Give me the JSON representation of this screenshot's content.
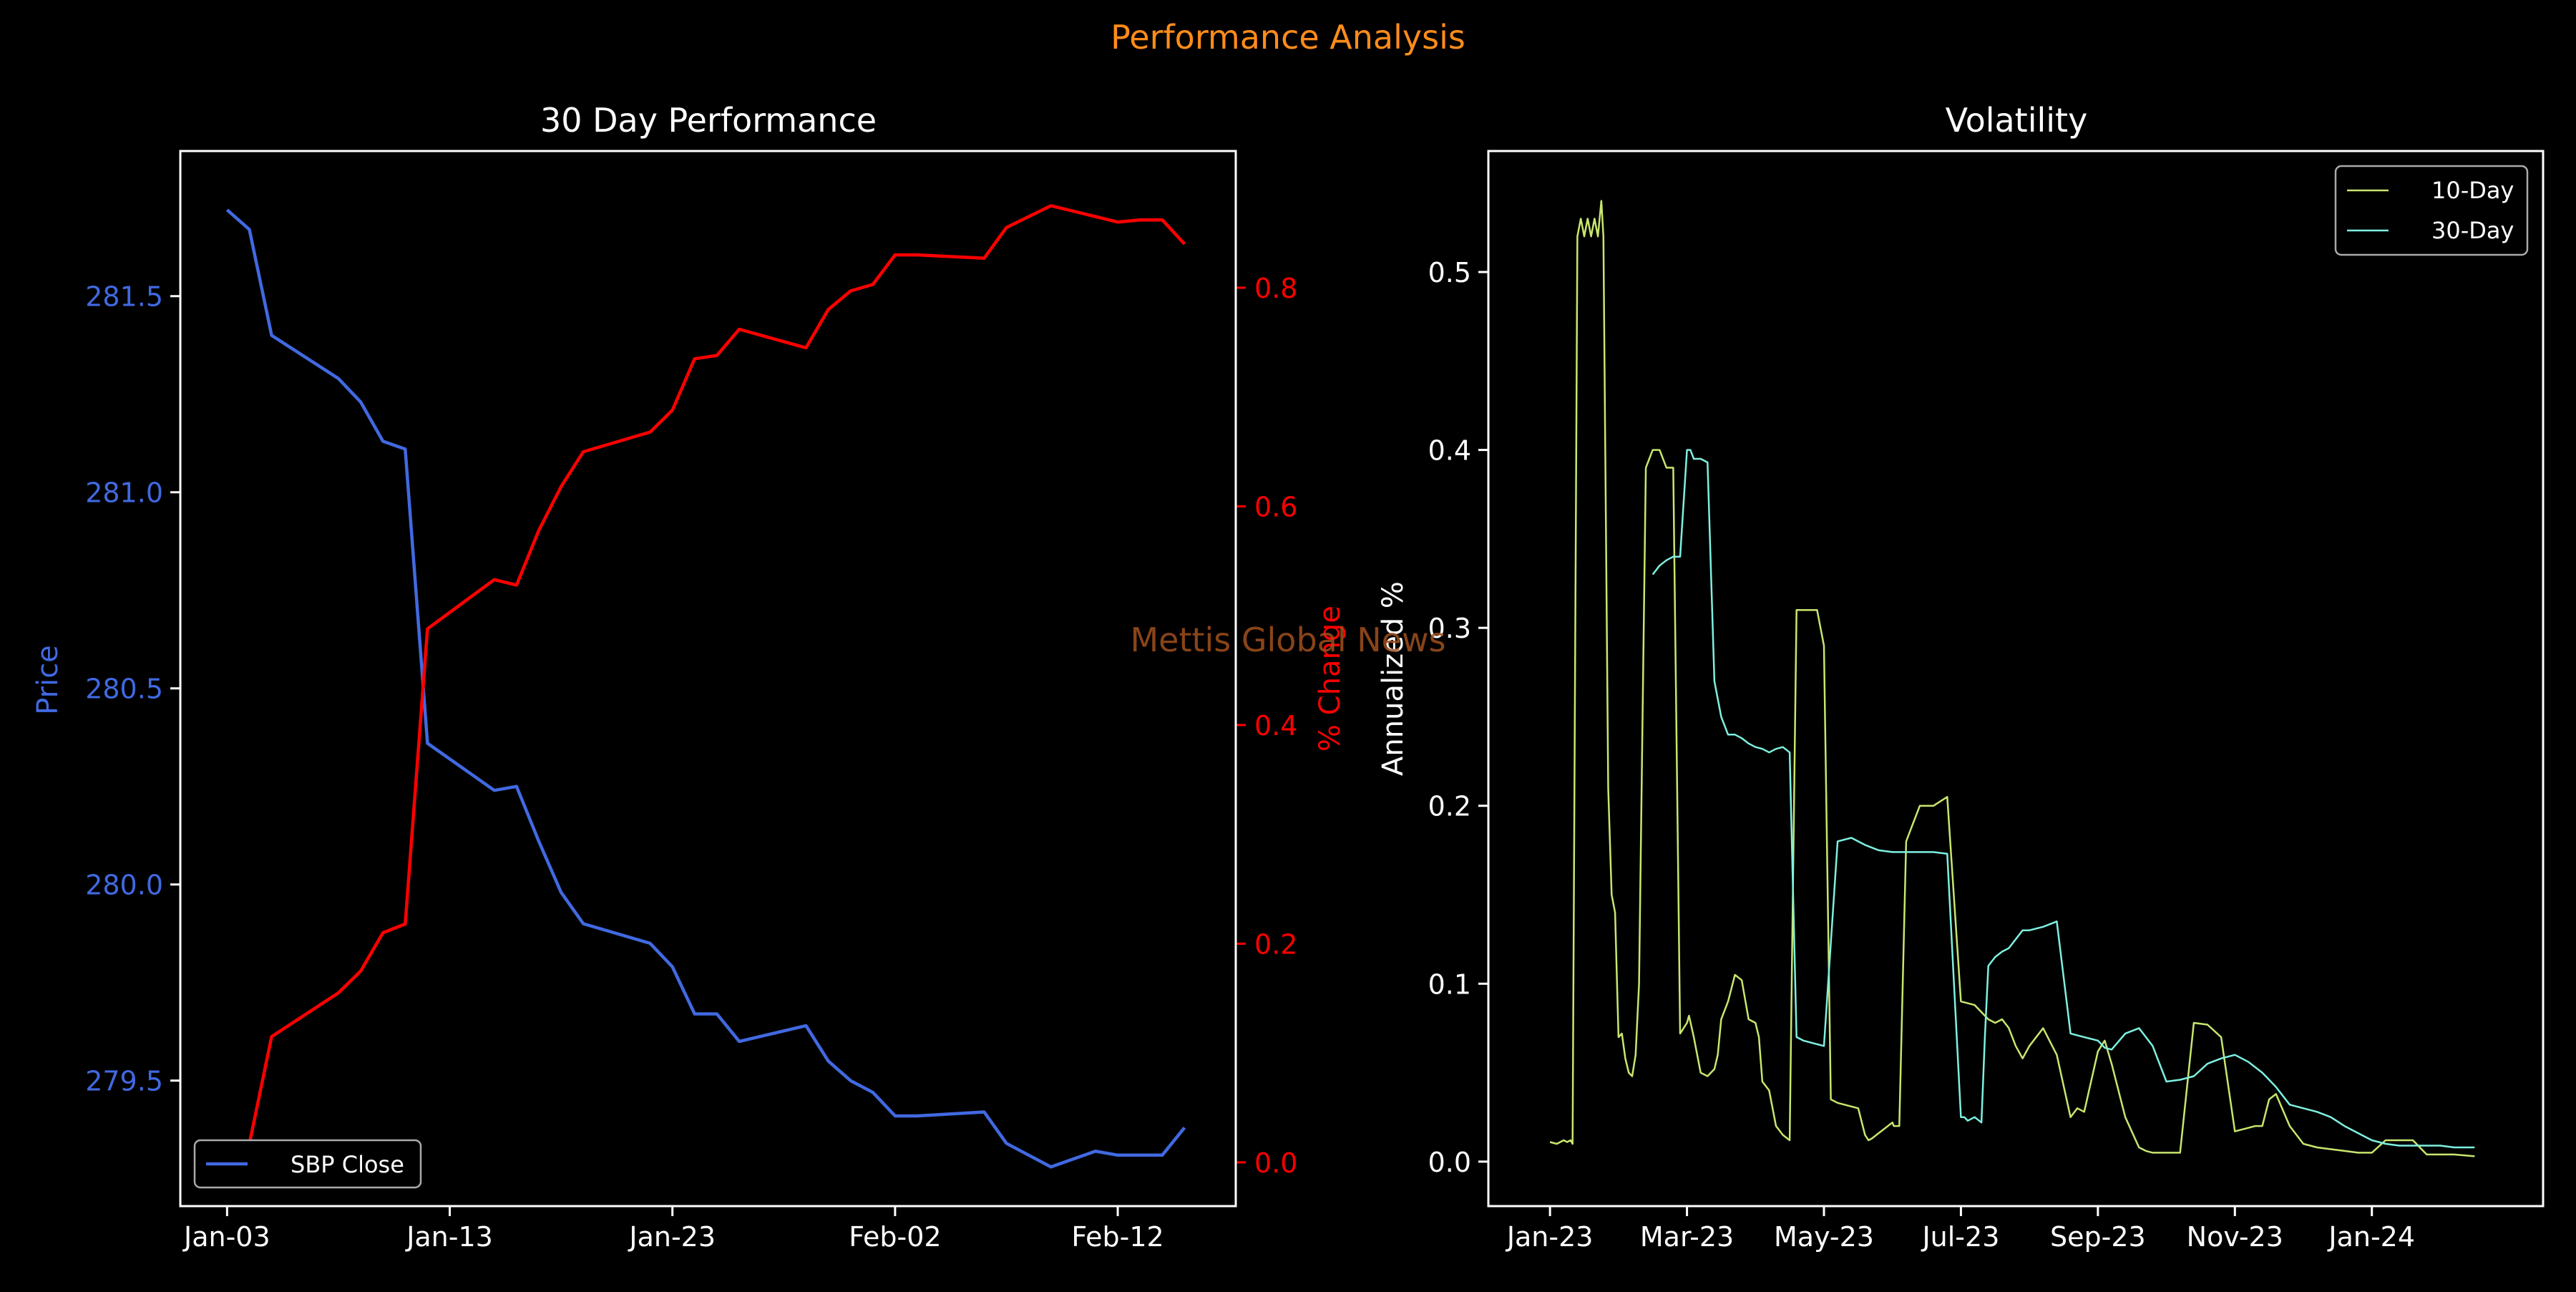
{
  "figure": {
    "suptitle": "Performance Analysis",
    "watermark": "Mettis Global News",
    "colors": {
      "background": "#000000",
      "suptitle": "#ff8c1a",
      "watermark": "#a0501c",
      "price": "#4169e1",
      "pct": "#ff0000",
      "vol10": "#c8e66e",
      "vol30": "#7ef0e0",
      "axes": "#ffffff"
    }
  },
  "chart_data": [
    {
      "type": "line",
      "title": "30 Day Performance",
      "xlabel": "",
      "ylabel_left": "Price",
      "ylabel_right": "% Change",
      "x_tick_labels": [
        "Jan-03",
        "Jan-13",
        "Jan-23",
        "Feb-02",
        "Feb-12"
      ],
      "x_tick_days": [
        0,
        10,
        20,
        30,
        40
      ],
      "y_left_ticks": [
        "279.5",
        "280.0",
        "280.5",
        "281.0",
        "281.5"
      ],
      "y_left_tick_values": [
        279.5,
        280.0,
        280.5,
        281.0,
        281.5
      ],
      "y_right_ticks": [
        "0.0",
        "0.2",
        "0.4",
        "0.6",
        "0.8"
      ],
      "y_right_tick_values": [
        0.0,
        0.2,
        0.4,
        0.6,
        0.8
      ],
      "xlim_days": [
        -2.1,
        45.3
      ],
      "ylim_left": [
        279.18,
        281.87
      ],
      "ylim_right": [
        -0.04,
        0.925
      ],
      "legend": {
        "position": "lower-left",
        "entries": [
          "SBP Close"
        ]
      },
      "grid": false,
      "series": [
        {
          "name": "SBP Close",
          "axis": "left",
          "x_days": [
            0,
            1,
            2,
            5,
            6,
            7,
            8,
            9,
            10,
            11,
            12,
            13,
            14,
            15,
            16,
            19,
            20,
            21,
            22,
            23,
            26,
            27,
            28,
            29,
            30,
            31,
            34,
            35,
            36,
            37,
            38,
            39,
            40,
            41,
            42,
            43
          ],
          "values": [
            281.72,
            281.67,
            281.4,
            281.29,
            281.23,
            281.13,
            281.11,
            280.36,
            280.32,
            280.28,
            280.24,
            280.25,
            280.11,
            279.98,
            279.9,
            279.85,
            279.79,
            279.67,
            279.67,
            279.6,
            279.64,
            279.55,
            279.5,
            279.47,
            279.41,
            279.41,
            279.42,
            279.34,
            279.31,
            279.28,
            279.3,
            279.32,
            279.31,
            279.31,
            279.31,
            279.38
          ]
        },
        {
          "name": "% Change",
          "axis": "right",
          "x_days": [
            0,
            1,
            2,
            5,
            6,
            7,
            8,
            9,
            10,
            11,
            12,
            13,
            14,
            15,
            16,
            19,
            20,
            21,
            22,
            23,
            26,
            27,
            28,
            29,
            30,
            31,
            34,
            35,
            36,
            37,
            38,
            39,
            40,
            41,
            42,
            43
          ],
          "values": [
            0.0,
            0.017,
            0.115,
            0.155,
            0.175,
            0.21,
            0.218,
            0.488,
            0.503,
            0.518,
            0.533,
            0.528,
            0.578,
            0.618,
            0.65,
            0.668,
            0.688,
            0.735,
            0.738,
            0.762,
            0.745,
            0.78,
            0.797,
            0.803,
            0.83,
            0.83,
            0.827,
            0.855,
            0.865,
            0.875,
            0.87,
            0.865,
            0.86,
            0.862,
            0.862,
            0.84
          ]
        }
      ]
    },
    {
      "type": "line",
      "title": "Volatility",
      "xlabel": "",
      "ylabel": "Annualized %",
      "x_tick_labels": [
        "Jan-23",
        "Mar-23",
        "May-23",
        "Jul-23",
        "Sep-23",
        "Nov-23",
        "Jan-24"
      ],
      "x_tick_months": [
        0,
        2,
        4,
        6,
        8,
        10,
        12
      ],
      "y_ticks": [
        "0.0",
        "0.1",
        "0.2",
        "0.3",
        "0.4",
        "0.5"
      ],
      "y_tick_values": [
        0.0,
        0.1,
        0.2,
        0.3,
        0.4,
        0.5
      ],
      "xlim_months": [
        -0.9,
        14.5
      ],
      "ylim": [
        -0.025,
        0.568
      ],
      "legend": {
        "position": "top-right",
        "entries": [
          "10-Day",
          "30-Day"
        ]
      },
      "grid": false,
      "series": [
        {
          "name": "10-Day",
          "x_months": [
            0.0,
            0.1,
            0.2,
            0.25,
            0.3,
            0.33,
            0.4,
            0.45,
            0.5,
            0.55,
            0.6,
            0.65,
            0.7,
            0.75,
            0.78,
            0.85,
            0.9,
            0.95,
            1.0,
            1.05,
            1.1,
            1.15,
            1.2,
            1.25,
            1.3,
            1.4,
            1.5,
            1.6,
            1.7,
            1.8,
            1.9,
            2.0,
            2.03,
            2.1,
            2.15,
            2.2,
            2.3,
            2.4,
            2.45,
            2.5,
            2.6,
            2.7,
            2.8,
            2.9,
            3.0,
            3.05,
            3.1,
            3.2,
            3.3,
            3.4,
            3.5,
            3.6,
            3.7,
            3.8,
            3.9,
            4.0,
            4.1,
            4.2,
            4.3,
            4.5,
            4.6,
            4.65,
            4.7,
            5.0,
            5.02,
            5.1,
            5.2,
            5.3,
            5.4,
            5.5,
            5.6,
            5.8,
            6.0,
            6.2,
            6.4,
            6.5,
            6.6,
            6.7,
            6.8,
            6.9,
            7.0,
            7.2,
            7.4,
            7.6,
            7.7,
            7.8,
            8.0,
            8.1,
            8.2,
            8.4,
            8.6,
            8.7,
            8.8,
            8.9,
            9.0,
            9.2,
            9.4,
            9.6,
            9.8,
            10.0,
            10.1,
            10.3,
            10.4,
            10.5,
            10.6,
            10.8,
            11.0,
            11.2,
            11.4,
            11.6,
            11.8,
            12.0,
            12.2,
            12.4,
            12.6,
            12.8,
            13.0,
            13.2,
            13.5
          ],
          "values": [
            0.011,
            0.01,
            0.012,
            0.011,
            0.012,
            0.01,
            0.52,
            0.53,
            0.52,
            0.53,
            0.52,
            0.53,
            0.52,
            0.54,
            0.52,
            0.21,
            0.15,
            0.14,
            0.07,
            0.072,
            0.058,
            0.05,
            0.048,
            0.06,
            0.1,
            0.39,
            0.4,
            0.4,
            0.39,
            0.39,
            0.072,
            0.078,
            0.082,
            0.07,
            0.06,
            0.05,
            0.048,
            0.052,
            0.06,
            0.08,
            0.09,
            0.105,
            0.102,
            0.08,
            0.078,
            0.07,
            0.045,
            0.04,
            0.02,
            0.015,
            0.012,
            0.31,
            0.31,
            0.31,
            0.31,
            0.29,
            0.035,
            0.033,
            0.032,
            0.03,
            0.015,
            0.012,
            0.013,
            0.022,
            0.02,
            0.02,
            0.18,
            0.19,
            0.2,
            0.2,
            0.2,
            0.205,
            0.09,
            0.088,
            0.08,
            0.078,
            0.08,
            0.075,
            0.065,
            0.058,
            0.065,
            0.075,
            0.06,
            0.025,
            0.03,
            0.028,
            0.062,
            0.068,
            0.055,
            0.025,
            0.008,
            0.006,
            0.005,
            0.005,
            0.005,
            0.005,
            0.078,
            0.077,
            0.07,
            0.017,
            0.018,
            0.02,
            0.02,
            0.035,
            0.038,
            0.02,
            0.01,
            0.008,
            0.007,
            0.006,
            0.005,
            0.005,
            0.012,
            0.012,
            0.012,
            0.004,
            0.004,
            0.004,
            0.003
          ]
        },
        {
          "name": "30-Day",
          "x_months": [
            1.5,
            1.6,
            1.7,
            1.8,
            1.9,
            2.0,
            2.05,
            2.1,
            2.2,
            2.3,
            2.4,
            2.5,
            2.6,
            2.7,
            2.8,
            2.9,
            3.0,
            3.1,
            3.2,
            3.3,
            3.4,
            3.5,
            3.6,
            3.7,
            3.8,
            3.9,
            4.0,
            4.2,
            4.4,
            4.6,
            4.8,
            5.0,
            5.1,
            5.2,
            5.4,
            5.6,
            5.8,
            6.0,
            6.05,
            6.1,
            6.2,
            6.3,
            6.35,
            6.4,
            6.5,
            6.6,
            6.7,
            6.8,
            6.9,
            7.0,
            7.2,
            7.4,
            7.6,
            7.8,
            8.0,
            8.1,
            8.2,
            8.4,
            8.6,
            8.8,
            9.0,
            9.2,
            9.4,
            9.6,
            9.8,
            10.0,
            10.2,
            10.4,
            10.6,
            10.8,
            11.0,
            11.2,
            11.4,
            11.6,
            11.8,
            12.0,
            12.2,
            12.4,
            12.6,
            12.8,
            13.0,
            13.2,
            13.5
          ],
          "values": [
            0.33,
            0.335,
            0.338,
            0.34,
            0.34,
            0.4,
            0.4,
            0.395,
            0.395,
            0.393,
            0.27,
            0.25,
            0.24,
            0.24,
            0.238,
            0.235,
            0.233,
            0.232,
            0.23,
            0.232,
            0.233,
            0.23,
            0.07,
            0.068,
            0.067,
            0.066,
            0.065,
            0.18,
            0.182,
            0.178,
            0.175,
            0.174,
            0.174,
            0.174,
            0.174,
            0.174,
            0.173,
            0.025,
            0.025,
            0.023,
            0.025,
            0.022,
            0.07,
            0.11,
            0.115,
            0.118,
            0.12,
            0.125,
            0.13,
            0.13,
            0.132,
            0.135,
            0.072,
            0.07,
            0.068,
            0.064,
            0.063,
            0.072,
            0.075,
            0.065,
            0.045,
            0.046,
            0.048,
            0.055,
            0.058,
            0.06,
            0.056,
            0.05,
            0.042,
            0.032,
            0.03,
            0.028,
            0.025,
            0.02,
            0.016,
            0.012,
            0.01,
            0.009,
            0.009,
            0.009,
            0.009,
            0.008,
            0.008
          ]
        }
      ]
    }
  ]
}
